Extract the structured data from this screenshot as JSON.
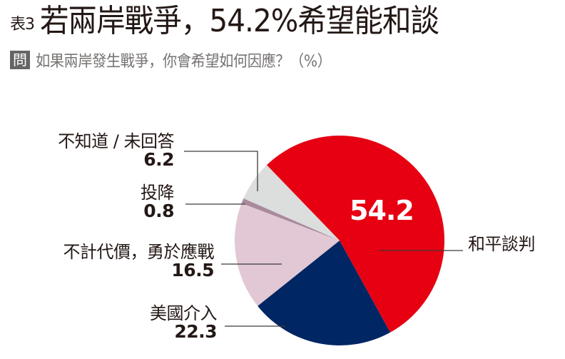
{
  "header": {
    "table_prefix": "表3",
    "title": "若兩岸戰爭，54.2%希望能和談",
    "question_badge": "問",
    "question": "如果兩岸發生戰爭，你會希望如何因應？（%）"
  },
  "labels": {
    "peace_talks": {
      "name": "和平談判",
      "value": "54.2"
    },
    "us_intervene": {
      "name": "美國介入",
      "value": "22.3"
    },
    "fight": {
      "name": "不計代價，勇於應戰",
      "value": "16.5"
    },
    "surrender": {
      "name": "投降",
      "value": "0.8"
    },
    "unknown": {
      "name": "不知道 / 未回答",
      "value": "6.2"
    }
  },
  "colors": {
    "peace_talks": "#e60012",
    "us_intervene": "#002663",
    "fight": "#e1c8d4",
    "surrender": "#a98a9c",
    "unknown": "#dcdddd",
    "leader": "#3e3a39"
  },
  "chart_data": {
    "type": "pie",
    "title": "若兩岸戰爭，54.2%希望能和談",
    "subtitle": "如果兩岸發生戰爭，你會希望如何因應？（%）",
    "categories": [
      "和平談判",
      "美國介入",
      "不計代價，勇於應戰",
      "投降",
      "不知道 / 未回答"
    ],
    "values": [
      54.2,
      22.3,
      16.5,
      0.8,
      6.2
    ],
    "unit": "%",
    "start_angle_deg_from_top": -44,
    "direction": "clockwise",
    "legend": "none (leader-line labels)"
  }
}
